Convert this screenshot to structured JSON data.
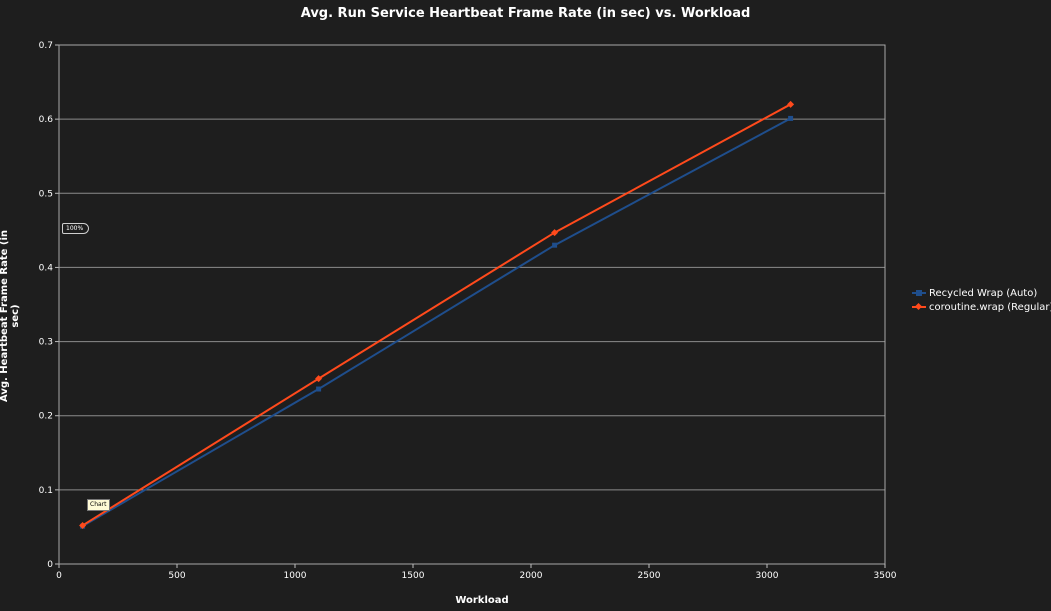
{
  "chart_data": {
    "type": "line",
    "title": "Avg. Run Service Heartbeat Frame Rate (in sec) vs. Workload",
    "xlabel": "Workload",
    "ylabel": "Avg. Heartbeat Frame Rate (in sec)",
    "xlim": [
      0,
      3500
    ],
    "ylim": [
      0,
      0.7
    ],
    "x_ticks": [
      "0",
      "500",
      "1000",
      "1500",
      "2000",
      "2500",
      "3000",
      "3500"
    ],
    "y_ticks": [
      "0",
      "0.1",
      "0.2",
      "0.3",
      "0.4",
      "0.5",
      "0.6",
      "0.7"
    ],
    "grid": "horizontal",
    "legend_position": "right",
    "series": [
      {
        "name": "Recycled Wrap (Auto)",
        "color": "#1f4e8c",
        "marker": "square",
        "x": [
          100,
          1100,
          2100,
          3100
        ],
        "y": [
          0.051,
          0.236,
          0.43,
          0.601
        ]
      },
      {
        "name": "coroutine.wrap (Regular)",
        "color": "#ff4a1c",
        "marker": "diamond",
        "x": [
          100,
          1100,
          2100,
          3100
        ],
        "y": [
          0.052,
          0.25,
          0.447,
          0.62
        ]
      }
    ]
  },
  "overlay": {
    "zoom_tag": "100%",
    "tooltip": "Chart"
  }
}
